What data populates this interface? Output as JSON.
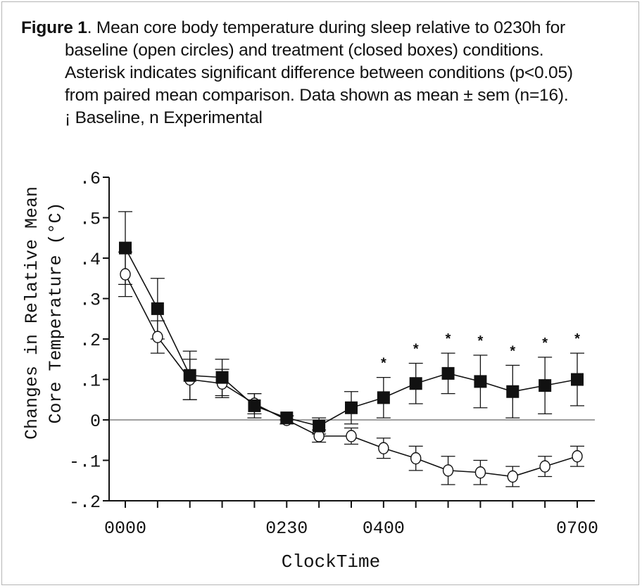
{
  "caption": {
    "label": "Figure 1",
    "line1": ". Mean core body temperature during sleep relative to 0230h for",
    "line2": "baseline (open circles) and treatment (closed boxes) conditions.",
    "line3": "Asterisk indicates significant difference between conditions (p<0.05)",
    "line4": "from paired mean comparison.  Data shown as mean ± sem (n=16).",
    "line5": "¡ Baseline, n Experimental"
  },
  "chart_data": {
    "type": "line",
    "title": "",
    "xlabel": "ClockTime",
    "ylabel_line1": "Changes in Relative Mean",
    "ylabel_line2": "Core Temperature (°C)",
    "xlim": [
      0,
      14
    ],
    "ylim": [
      -0.2,
      0.6
    ],
    "yticks": [
      -0.2,
      -0.1,
      0,
      0.1,
      0.2,
      0.3,
      0.4,
      0.5,
      0.6
    ],
    "ytick_labels": [
      "-.2",
      "-.1",
      "0",
      ".1",
      ".2",
      ".3",
      ".4",
      ".5",
      ".6"
    ],
    "xtick_positions": [
      0,
      5,
      8,
      14
    ],
    "xtick_labels": [
      "0000",
      "0230",
      "0400",
      "0700"
    ],
    "x": [
      0,
      1,
      2,
      3,
      4,
      5,
      6,
      7,
      8,
      9,
      10,
      11,
      12,
      13,
      14
    ],
    "series": [
      {
        "name": "Baseline",
        "marker": "open-circle",
        "values": [
          0.36,
          0.205,
          0.1,
          0.09,
          0.04,
          0.0,
          -0.04,
          -0.04,
          -0.07,
          -0.095,
          -0.125,
          -0.13,
          -0.14,
          -0.115,
          -0.09
        ],
        "errors": [
          0.055,
          0.04,
          0.05,
          0.035,
          0.025,
          0.01,
          0.015,
          0.02,
          0.025,
          0.03,
          0.035,
          0.03,
          0.025,
          0.025,
          0.025
        ]
      },
      {
        "name": "Experimental",
        "marker": "closed-square",
        "values": [
          0.425,
          0.275,
          0.11,
          0.105,
          0.035,
          0.005,
          -0.015,
          0.03,
          0.055,
          0.09,
          0.115,
          0.095,
          0.07,
          0.085,
          0.1
        ],
        "errors": [
          0.09,
          0.075,
          0.06,
          0.045,
          0.03,
          0.005,
          0.02,
          0.04,
          0.05,
          0.05,
          0.05,
          0.065,
          0.065,
          0.07,
          0.065
        ]
      }
    ],
    "significance_marker": "*",
    "significant_x": [
      8,
      9,
      10,
      11,
      12,
      13,
      14
    ]
  }
}
